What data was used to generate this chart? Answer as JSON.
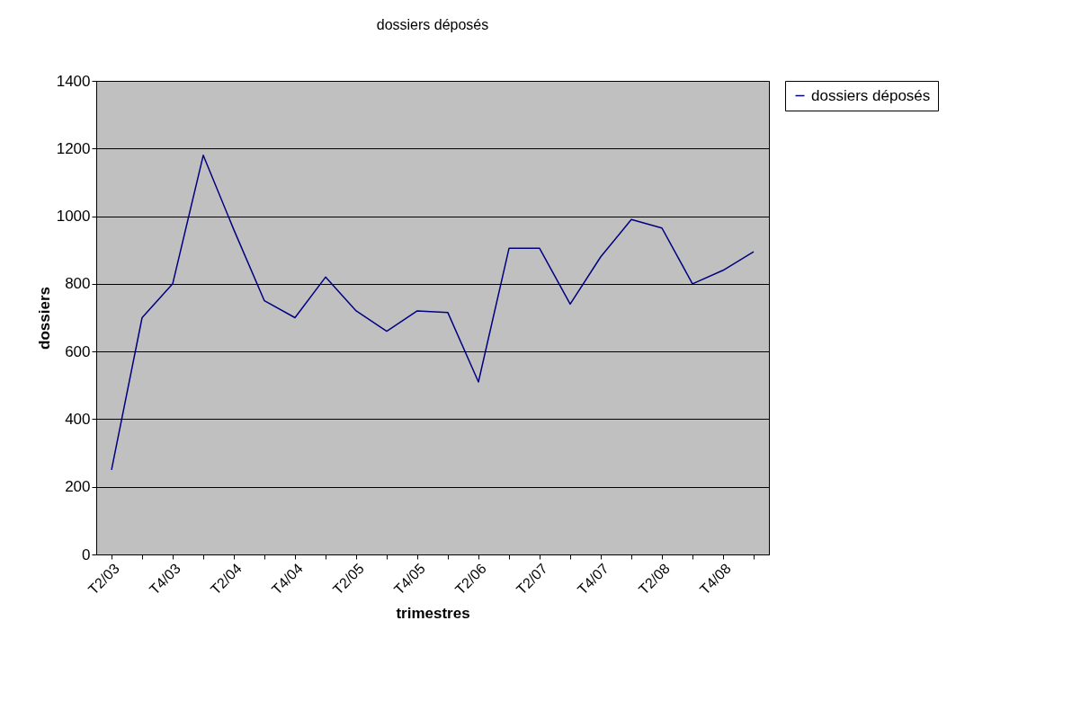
{
  "chart_data": {
    "type": "line",
    "title": "dossiers déposés",
    "xlabel": "trimestres",
    "ylabel": "dossiers",
    "categories": [
      "T2/03",
      null,
      "T4/03",
      null,
      "T2/04",
      null,
      "T4/04",
      null,
      "T2/05",
      null,
      "T4/05",
      null,
      "T2/06",
      null,
      "T2/07",
      null,
      "T4/07",
      null,
      "T2/08",
      null,
      "T4/08",
      null
    ],
    "series": [
      {
        "name": "dossiers déposés",
        "color": "#000080",
        "values": [
          250,
          700,
          800,
          1180,
          960,
          750,
          700,
          820,
          720,
          660,
          720,
          715,
          510,
          905,
          905,
          740,
          880,
          990,
          965,
          800,
          840,
          895
        ]
      }
    ],
    "ylim": [
      0,
      1400
    ],
    "yticks": [
      0,
      200,
      400,
      600,
      800,
      1000,
      1200,
      1400
    ],
    "grid": "y",
    "legend": "right",
    "marker": "none",
    "line_style": "solid"
  }
}
